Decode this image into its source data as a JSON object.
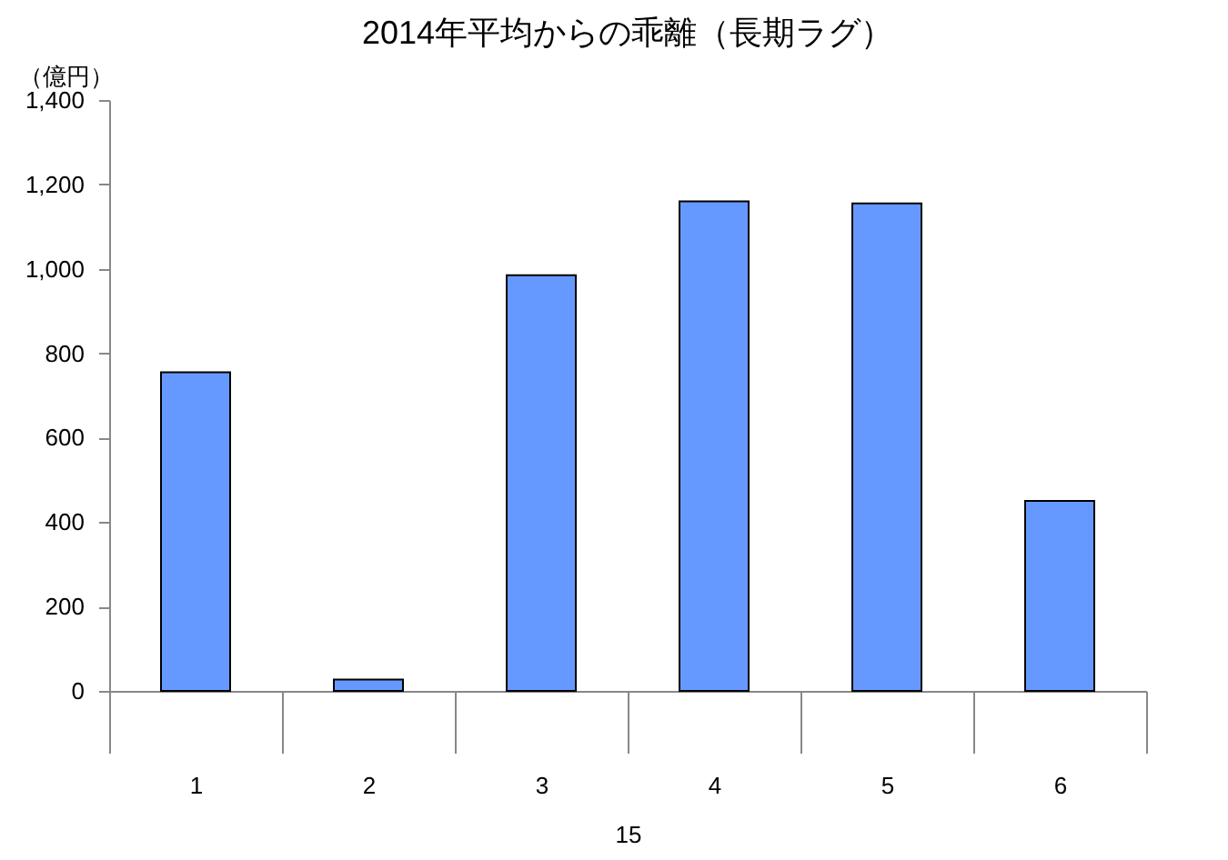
{
  "chart_data": {
    "type": "bar",
    "title": "2014年平均からの乖離（長期ラグ）",
    "ylabel": "（億円）",
    "xlabel": "15",
    "categories": [
      "1",
      "2",
      "3",
      "4",
      "5",
      "6"
    ],
    "values": [
      755,
      27,
      985,
      1160,
      1155,
      450
    ],
    "color": "#6699ff",
    "ylim": [
      0,
      1400
    ],
    "yticks": [
      0,
      200,
      400,
      600,
      800,
      {
        "value": 1000,
        "label": "1,000"
      },
      {
        "value": 1200,
        "label": "1,200"
      },
      {
        "value": 1400,
        "label": "1,400"
      }
    ],
    "grid": false
  }
}
